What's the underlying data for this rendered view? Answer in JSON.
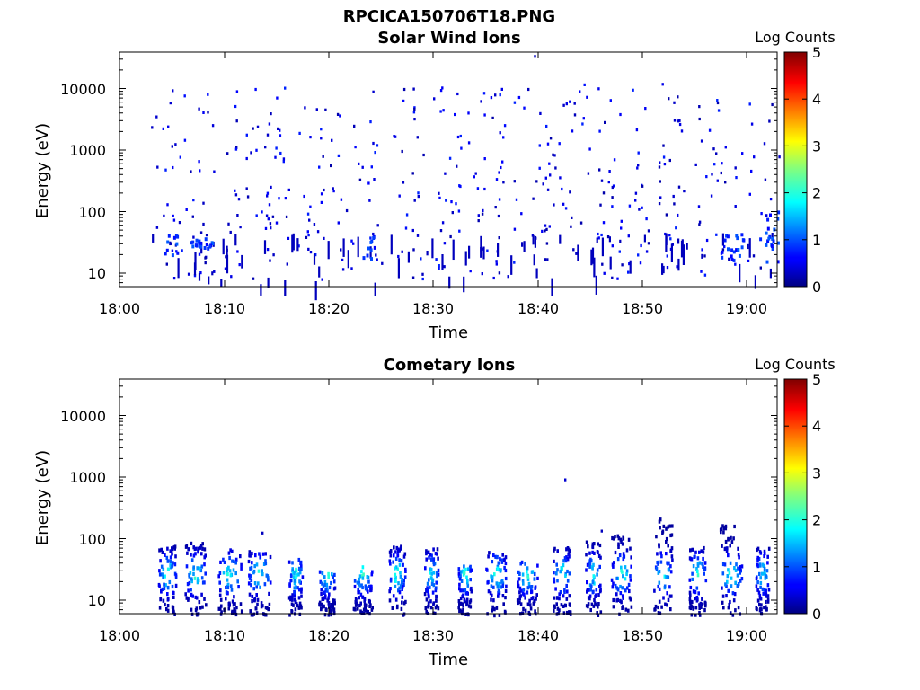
{
  "figure_title": "RPCICA150706T18.PNG",
  "colorbar": {
    "label": "Log Counts",
    "ticks": [
      "0",
      "1",
      "2",
      "3",
      "4",
      "5"
    ],
    "range": [
      0,
      5
    ],
    "colormap": "jet"
  },
  "chart_data": [
    {
      "type": "heatmap",
      "title": "Solar Wind Ions",
      "xlabel": "Time",
      "ylabel": "Energy (eV)",
      "x_ticks": [
        "18:00",
        "18:10",
        "18:20",
        "18:30",
        "18:40",
        "18:50",
        "19:00"
      ],
      "y_ticks": [
        "10",
        "100",
        "1000",
        "10000"
      ],
      "xlim_minutes_after_1800": [
        0,
        63
      ],
      "ylim_eV": [
        6,
        40000
      ],
      "y_scale": "log",
      "description_of_data": "sparse low-count (log ~0.1-1) events scattered over 10-10000 eV, with denser blocks at 15-50 eV",
      "events": [
        {
          "t": "18:04.5",
          "e_eV": [
            15,
            50
          ],
          "log_counts": 0.3
        },
        {
          "t": "18:07.5",
          "e_eV": [
            25,
            45
          ],
          "log_counts": 0.8
        },
        {
          "t": "18:23.5",
          "e_eV": [
            15,
            50
          ],
          "log_counts": 0.3
        },
        {
          "t": "18:58.5",
          "e_eV": [
            15,
            50
          ],
          "log_counts": 0.5
        },
        {
          "t": "19:01.5",
          "e_eV": [
            20,
            120
          ],
          "log_counts": 0.8
        }
      ]
    },
    {
      "type": "heatmap",
      "title": "Cometary Ions",
      "xlabel": "Time",
      "ylabel": "Energy (eV)",
      "x_ticks": [
        "18:00",
        "18:10",
        "18:20",
        "18:30",
        "18:40",
        "18:50",
        "19:00"
      ],
      "y_ticks": [
        "10",
        "100",
        "1000",
        "10000"
      ],
      "xlim_minutes_after_1800": [
        0,
        63
      ],
      "ylim_eV": [
        6,
        40000
      ],
      "y_scale": "log",
      "description_of_data": "periodic bursts every ~3-4 minutes at 8-100 eV with peak log counts ~1-2 around 20-40 eV; isolated point near 1000 eV at ~18:42.5",
      "bursts_minutes": [
        4.5,
        7.2,
        10.5,
        13.3,
        16.8,
        19.8,
        23.2,
        26.5,
        29.8,
        33.0,
        36.0,
        39.0,
        42.3,
        45.3,
        48.0,
        52.0,
        55.3,
        58.5,
        61.5
      ]
    }
  ]
}
